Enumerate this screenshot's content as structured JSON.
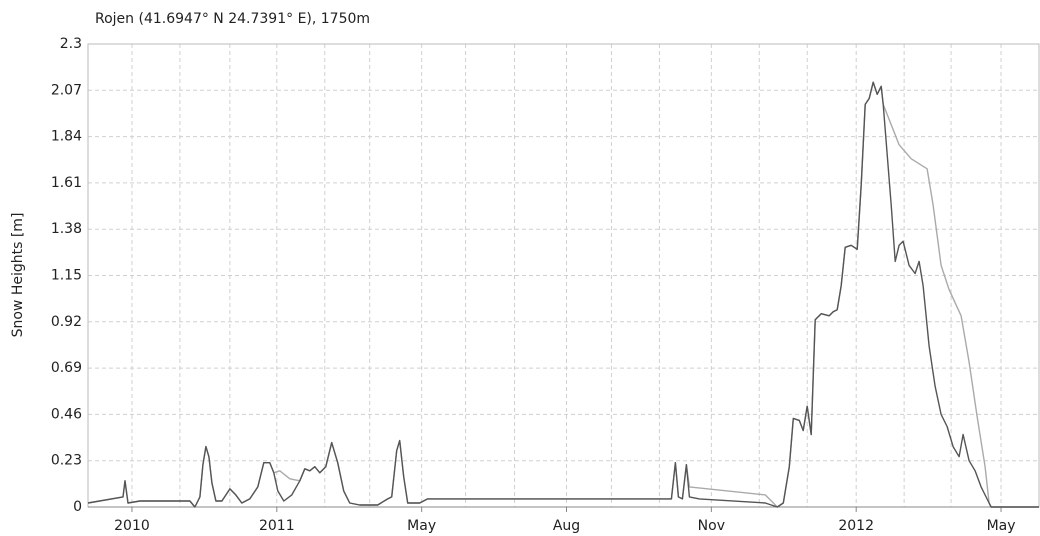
{
  "chart_data": {
    "type": "line",
    "title": "Rojen (41.6947° N 24.7391° E), 1750m",
    "y_label": "Snow Heights [m]",
    "xlim": [
      -44,
      908
    ],
    "xticks": [
      {
        "value": 0,
        "label": "2010"
      },
      {
        "value": 145,
        "label": "2011"
      },
      {
        "value": 290,
        "label": "May"
      },
      {
        "value": 435,
        "label": "Aug"
      },
      {
        "value": 580,
        "label": "Nov"
      },
      {
        "value": 725,
        "label": "2012"
      },
      {
        "value": 870,
        "label": "May"
      }
    ],
    "xminorticks": [
      48,
      98,
      193,
      238,
      334,
      383,
      480,
      528,
      628,
      676,
      773,
      820
    ],
    "ylim": [
      0,
      2.3
    ],
    "yticks": [
      0,
      0.23,
      0.46,
      0.69,
      0.92,
      1.15,
      1.38,
      1.61,
      1.84,
      2.07,
      2.3
    ],
    "grid": true,
    "series": [
      {
        "color": "#aaaaaa",
        "x": [
          -44,
          -9,
          -7,
          -4,
          8,
          58,
          63,
          68,
          71,
          74,
          77,
          80,
          84,
          90,
          98,
          104,
          110,
          118,
          126,
          132,
          138,
          142,
          148,
          158,
          168,
          173,
          178,
          183,
          188,
          194,
          200,
          206,
          212,
          218,
          228,
          246,
          256,
          260,
          265,
          268,
          272,
          276,
          288,
          296,
          540,
          544,
          547,
          551,
          555,
          558,
          634,
          646,
          652,
          658,
          662,
          668,
          672,
          676,
          680,
          684,
          690,
          698,
          702,
          706,
          710,
          714,
          720,
          726,
          730,
          734,
          738,
          742,
          746,
          750,
          752,
          756,
          768,
          780,
          796,
          802,
          810,
          818,
          830,
          838,
          846,
          854,
          858,
          860,
          908
        ],
        "values": [
          0.02,
          0.05,
          0.13,
          0.02,
          0.03,
          0.03,
          0,
          0.05,
          0.21,
          0.3,
          0.25,
          0.12,
          0.03,
          0.03,
          0.09,
          0.06,
          0.02,
          0.04,
          0.1,
          0.22,
          0.22,
          0.17,
          0.18,
          0.14,
          0.13,
          0.19,
          0.18,
          0.2,
          0.17,
          0.2,
          0.32,
          0.22,
          0.08,
          0.02,
          0.01,
          0.01,
          0.04,
          0.05,
          0.28,
          0.33,
          0.15,
          0.02,
          0.02,
          0.04,
          0.04,
          0.22,
          0.05,
          0.04,
          0.21,
          0.1,
          0.06,
          0,
          0.02,
          0.2,
          0.44,
          0.43,
          0.38,
          0.5,
          0.36,
          0.93,
          0.96,
          0.95,
          0.97,
          0.98,
          1.1,
          1.29,
          1.3,
          1.28,
          1.6,
          2,
          2.03,
          2.11,
          2.05,
          2.09,
          2,
          1.95,
          1.8,
          1.73,
          1.68,
          1.5,
          1.2,
          1.08,
          0.95,
          0.72,
          0.45,
          0.2,
          0.02,
          0,
          0
        ]
      },
      {
        "color": "#555555",
        "x": [
          -44,
          -9,
          -7,
          -4,
          8,
          58,
          63,
          68,
          71,
          74,
          77,
          80,
          84,
          90,
          98,
          104,
          110,
          118,
          126,
          132,
          138,
          142,
          146,
          152,
          160,
          168,
          173,
          178,
          183,
          188,
          194,
          200,
          206,
          212,
          218,
          228,
          246,
          256,
          260,
          265,
          268,
          272,
          276,
          288,
          296,
          540,
          544,
          547,
          551,
          555,
          558,
          568,
          634,
          646,
          652,
          658,
          662,
          668,
          672,
          676,
          680,
          684,
          690,
          698,
          702,
          706,
          710,
          714,
          720,
          726,
          730,
          734,
          738,
          742,
          746,
          750,
          752,
          756,
          760,
          764,
          768,
          772,
          778,
          784,
          788,
          792,
          798,
          804,
          810,
          816,
          822,
          828,
          832,
          838,
          844,
          850,
          858,
          860,
          908
        ],
        "values": [
          0.02,
          0.05,
          0.13,
          0.02,
          0.03,
          0.03,
          0,
          0.05,
          0.21,
          0.3,
          0.25,
          0.12,
          0.03,
          0.03,
          0.09,
          0.06,
          0.02,
          0.04,
          0.1,
          0.22,
          0.22,
          0.17,
          0.08,
          0.03,
          0.06,
          0.13,
          0.19,
          0.18,
          0.2,
          0.17,
          0.2,
          0.32,
          0.22,
          0.08,
          0.02,
          0.01,
          0.01,
          0.04,
          0.05,
          0.28,
          0.33,
          0.15,
          0.02,
          0.02,
          0.04,
          0.04,
          0.22,
          0.05,
          0.04,
          0.21,
          0.05,
          0.04,
          0.02,
          0,
          0.02,
          0.2,
          0.44,
          0.43,
          0.38,
          0.5,
          0.36,
          0.93,
          0.96,
          0.95,
          0.97,
          0.98,
          1.1,
          1.29,
          1.3,
          1.28,
          1.6,
          2,
          2.03,
          2.11,
          2.05,
          2.09,
          2,
          1.75,
          1.5,
          1.22,
          1.3,
          1.32,
          1.2,
          1.16,
          1.22,
          1.1,
          0.8,
          0.6,
          0.46,
          0.4,
          0.3,
          0.25,
          0.36,
          0.23,
          0.18,
          0.1,
          0.02,
          0,
          0
        ]
      }
    ]
  }
}
